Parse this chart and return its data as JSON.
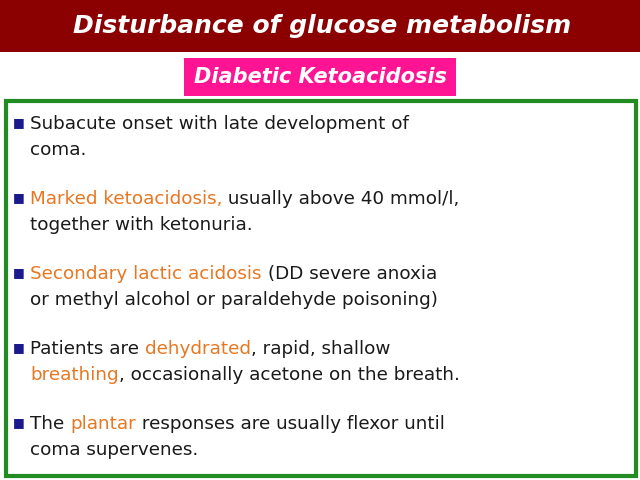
{
  "title": "Disturbance of glucose metabolism",
  "title_bg": "#8B0000",
  "title_color": "#FFFFFF",
  "subtitle": "Diabetic Ketoacidosis",
  "subtitle_bg": "#FF1493",
  "subtitle_color": "#FFFFFF",
  "box_border_color": "#228B22",
  "bg_color": "#FFFFFF",
  "bullet_color": "#1a1a8c",
  "bullet_points": [
    {
      "segments": [
        {
          "text": "Subacute onset with late development of\ncoma.",
          "color": "#1a1a1a"
        }
      ]
    },
    {
      "segments": [
        {
          "text": "Marked ketoacidosis,",
          "color": "#E87722"
        },
        {
          "text": " usually above 40 mmol/l,\ntogether with ketonuria.",
          "color": "#1a1a1a"
        }
      ]
    },
    {
      "segments": [
        {
          "text": "Secondary lactic acidosis",
          "color": "#E87722"
        },
        {
          "text": " (DD severe anoxia\nor methyl alcohol or paraldehyde poisoning)",
          "color": "#1a1a1a"
        }
      ]
    },
    {
      "segments": [
        {
          "text": "Patients are ",
          "color": "#1a1a1a"
        },
        {
          "text": "dehydrated",
          "color": "#E87722"
        },
        {
          "text": ", rapid, shallow\n",
          "color": "#1a1a1a"
        },
        {
          "text": "breathing",
          "color": "#E87722"
        },
        {
          "text": ", occasionally acetone on the breath.",
          "color": "#1a1a1a"
        }
      ]
    },
    {
      "segments": [
        {
          "text": "The ",
          "color": "#1a1a1a"
        },
        {
          "text": "plantar",
          "color": "#E87722"
        },
        {
          "text": " responses are usually flexor until\ncoma supervenes.",
          "color": "#1a1a1a"
        }
      ]
    }
  ]
}
